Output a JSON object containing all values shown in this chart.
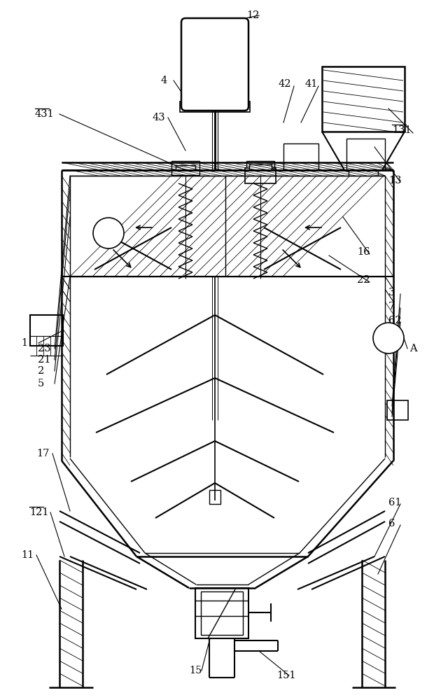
{
  "bg_color": "#ffffff",
  "line_color": "#000000",
  "fig_width": 6.4,
  "fig_height": 10.0
}
